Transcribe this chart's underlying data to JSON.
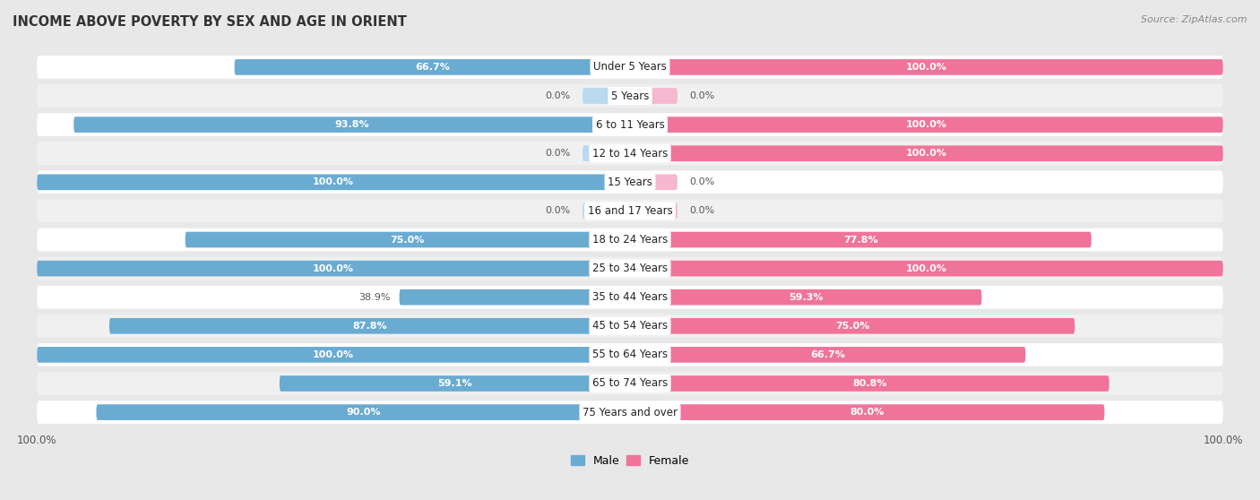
{
  "title": "INCOME ABOVE POVERTY BY SEX AND AGE IN ORIENT",
  "source": "Source: ZipAtlas.com",
  "categories": [
    "Under 5 Years",
    "5 Years",
    "6 to 11 Years",
    "12 to 14 Years",
    "15 Years",
    "16 and 17 Years",
    "18 to 24 Years",
    "25 to 34 Years",
    "35 to 44 Years",
    "45 to 54 Years",
    "55 to 64 Years",
    "65 to 74 Years",
    "75 Years and over"
  ],
  "male_values": [
    66.7,
    0.0,
    93.8,
    0.0,
    100.0,
    0.0,
    75.0,
    100.0,
    38.9,
    87.8,
    100.0,
    59.1,
    90.0
  ],
  "female_values": [
    100.0,
    0.0,
    100.0,
    100.0,
    0.0,
    0.0,
    77.8,
    100.0,
    59.3,
    75.0,
    66.7,
    80.8,
    80.0
  ],
  "male_color": "#6aabd2",
  "male_light_color": "#b8d9ee",
  "female_color": "#f0739a",
  "female_light_color": "#f5b8ce",
  "male_label": "Male",
  "female_label": "Female",
  "background_color": "#e8e8e8",
  "row_white": "#ffffff",
  "row_light": "#f0f0f0",
  "title_fontsize": 10.5,
  "label_fontsize": 8.5,
  "value_fontsize": 8,
  "legend_fontsize": 9
}
